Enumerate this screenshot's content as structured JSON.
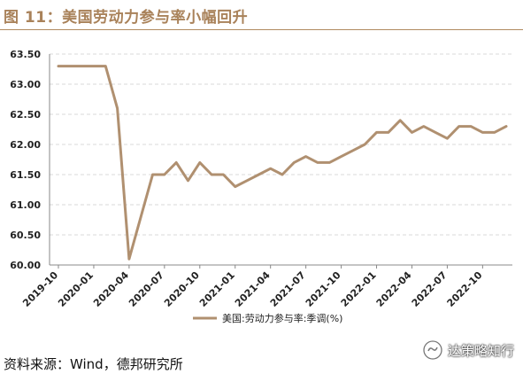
{
  "figure": {
    "title": "图 11：美国劳动力参与率小幅回升",
    "source": "资料来源：Wind，德邦研究所",
    "watermark": "达策略知行"
  },
  "chart_data": {
    "type": "line",
    "title": "",
    "xlabel": "",
    "ylabel": "",
    "ylim": [
      60.0,
      63.5
    ],
    "yticks": [
      "60.00",
      "60.50",
      "61.00",
      "61.50",
      "62.00",
      "62.50",
      "63.00",
      "63.50"
    ],
    "x": [
      "2019-10",
      "2019-11",
      "2019-12",
      "2020-01",
      "2020-02",
      "2020-03",
      "2020-04",
      "2020-05",
      "2020-06",
      "2020-07",
      "2020-08",
      "2020-09",
      "2020-10",
      "2020-11",
      "2020-12",
      "2021-01",
      "2021-02",
      "2021-03",
      "2021-04",
      "2021-05",
      "2021-06",
      "2021-07",
      "2021-08",
      "2021-09",
      "2021-10",
      "2021-11",
      "2021-12",
      "2022-01",
      "2022-02",
      "2022-03",
      "2022-04",
      "2022-05",
      "2022-06",
      "2022-07",
      "2022-08",
      "2022-09",
      "2022-10",
      "2022-11",
      "2022-12"
    ],
    "xtick_labels": [
      "2019-10",
      "2020-01",
      "2020-04",
      "2020-07",
      "2020-10",
      "2021-01",
      "2021-04",
      "2021-07",
      "2021-10",
      "2022-01",
      "2022-04",
      "2022-07",
      "2022-10"
    ],
    "grid": "horizontal dashed",
    "legend_position": "bottom",
    "series": [
      {
        "name": "美国:劳动力参与率:季调(%)",
        "color": "#b09070",
        "values": [
          63.3,
          63.3,
          63.3,
          63.3,
          63.3,
          62.6,
          60.1,
          60.8,
          61.5,
          61.5,
          61.7,
          61.4,
          61.7,
          61.5,
          61.5,
          61.3,
          61.4,
          61.5,
          61.6,
          61.5,
          61.7,
          61.8,
          61.7,
          61.7,
          61.8,
          61.9,
          62.0,
          62.2,
          62.2,
          62.4,
          62.2,
          62.3,
          62.2,
          62.1,
          62.3,
          62.3,
          62.2,
          62.2,
          62.3
        ]
      }
    ]
  }
}
